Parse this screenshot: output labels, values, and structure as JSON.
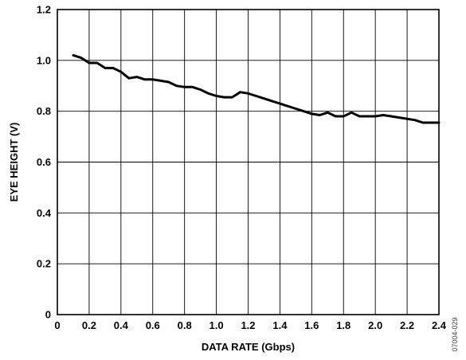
{
  "chart_data": {
    "type": "line",
    "xlabel": "DATA RATE (Gbps)",
    "ylabel": "EYE HEIGHT (V)",
    "xlim": [
      0,
      2.4
    ],
    "ylim": [
      0,
      1.2
    ],
    "xticks": [
      "0",
      "0.2",
      "0.4",
      "0.6",
      "0.8",
      "1.0",
      "1.2",
      "1.4",
      "1.6",
      "1.8",
      "2.0",
      "2.2",
      "2.4"
    ],
    "yticks": [
      "0",
      "0.2",
      "0.4",
      "0.6",
      "0.8",
      "1.0",
      "1.2"
    ],
    "grid": true,
    "series": [
      {
        "color": "#000000",
        "x": [
          0.1,
          0.15,
          0.2,
          0.25,
          0.3,
          0.35,
          0.4,
          0.45,
          0.5,
          0.55,
          0.6,
          0.65,
          0.7,
          0.75,
          0.8,
          0.85,
          0.9,
          0.95,
          1.0,
          1.05,
          1.1,
          1.15,
          1.2,
          1.25,
          1.3,
          1.35,
          1.4,
          1.45,
          1.5,
          1.55,
          1.6,
          1.65,
          1.7,
          1.75,
          1.8,
          1.85,
          1.9,
          1.95,
          2.0,
          2.05,
          2.1,
          2.15,
          2.2,
          2.25,
          2.3,
          2.35,
          2.4
        ],
        "y": [
          1.02,
          1.01,
          0.99,
          0.99,
          0.97,
          0.97,
          0.955,
          0.93,
          0.935,
          0.925,
          0.925,
          0.92,
          0.915,
          0.9,
          0.895,
          0.895,
          0.885,
          0.87,
          0.86,
          0.855,
          0.855,
          0.875,
          0.87,
          0.86,
          0.85,
          0.84,
          0.83,
          0.82,
          0.81,
          0.8,
          0.79,
          0.785,
          0.795,
          0.78,
          0.78,
          0.795,
          0.78,
          0.78,
          0.78,
          0.785,
          0.78,
          0.775,
          0.77,
          0.765,
          0.755,
          0.755,
          0.755
        ]
      }
    ],
    "figure_code": "07004-029"
  }
}
